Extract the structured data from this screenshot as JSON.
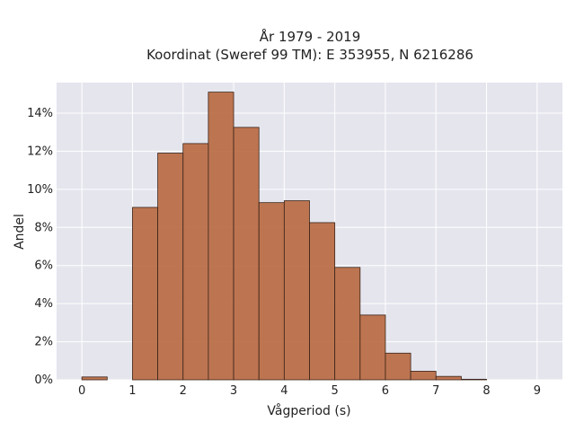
{
  "chart_data": {
    "type": "bar",
    "title_line1": "År 1979 - 2019",
    "title_line2": "Koordinat (Sweref 99 TM): E 353955, N 6216286",
    "xlabel": "Vågperiod (s)",
    "ylabel": "Andel",
    "xlim": [
      -0.5,
      9.5
    ],
    "ylim": [
      0,
      15.6
    ],
    "x_ticks": [
      0,
      1,
      2,
      3,
      4,
      5,
      6,
      7,
      8,
      9
    ],
    "y_ticks": [
      0,
      2,
      4,
      6,
      8,
      10,
      12,
      14
    ],
    "y_tick_suffix": "%",
    "bin_width": 0.5,
    "bins": [
      {
        "start": 0.0,
        "value": 0.15
      },
      {
        "start": 0.5,
        "value": 0.0
      },
      {
        "start": 1.0,
        "value": 9.05
      },
      {
        "start": 1.5,
        "value": 11.9
      },
      {
        "start": 2.0,
        "value": 12.4
      },
      {
        "start": 2.5,
        "value": 15.1
      },
      {
        "start": 3.0,
        "value": 13.25
      },
      {
        "start": 3.5,
        "value": 9.3
      },
      {
        "start": 4.0,
        "value": 9.4
      },
      {
        "start": 4.5,
        "value": 8.25
      },
      {
        "start": 5.0,
        "value": 5.9
      },
      {
        "start": 5.5,
        "value": 3.4
      },
      {
        "start": 6.0,
        "value": 1.4
      },
      {
        "start": 6.5,
        "value": 0.45
      },
      {
        "start": 7.0,
        "value": 0.18
      },
      {
        "start": 7.5,
        "value": 0.03
      }
    ],
    "grid": true,
    "colors": {
      "bar_fill": "#b8683f",
      "bar_edge": "#3a2418",
      "plot_bg": "#e5e5ee",
      "grid": "#ffffff"
    }
  }
}
